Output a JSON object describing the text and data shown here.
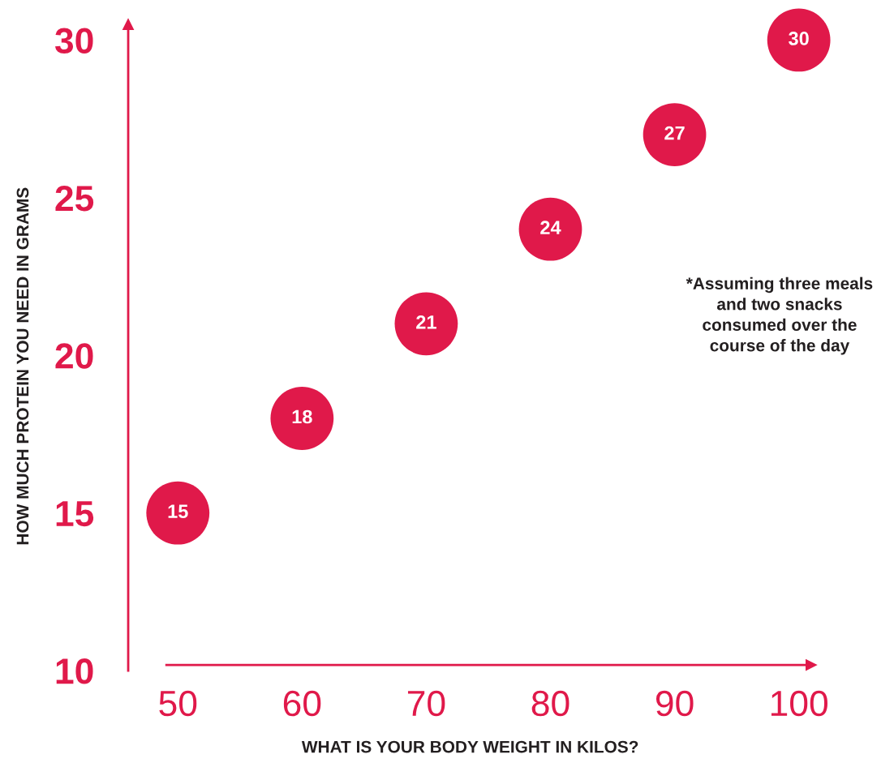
{
  "chart_data": {
    "type": "scatter",
    "xlabel": "WHAT IS YOUR BODY WEIGHT IN KILOS?",
    "ylabel": "HOW MUCH PROTEIN YOU NEED IN GRAMS",
    "x": [
      50,
      60,
      70,
      80,
      90,
      100
    ],
    "values": [
      15,
      18,
      21,
      24,
      27,
      30
    ],
    "color": "#e0194a",
    "marker": "circle",
    "data_labels": true,
    "xlim": [
      46,
      101
    ],
    "ylim": [
      10,
      30.5
    ],
    "xticks": [
      50,
      60,
      70,
      80,
      90,
      100
    ],
    "yticks": [
      10,
      15,
      20,
      25,
      30
    ],
    "annotations": [
      "*Assuming three meals\nand two snacks\nconsumed over the\ncourse of the day"
    ]
  }
}
